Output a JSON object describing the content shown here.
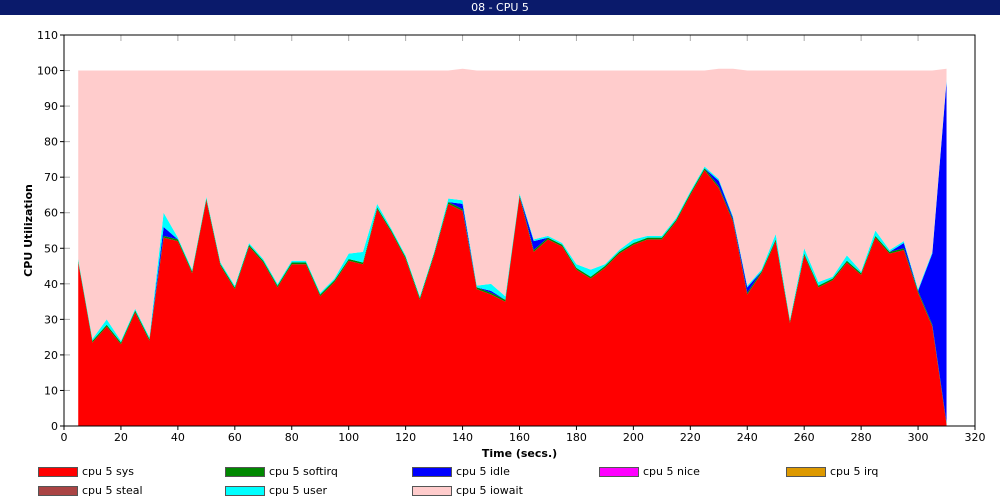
{
  "window": {
    "title": "08 - CPU 5"
  },
  "chart_data": {
    "type": "area",
    "stacked": true,
    "title": "",
    "xlabel": "Time (secs.)",
    "ylabel": "CPU Utilization",
    "xlim": [
      0,
      320
    ],
    "ylim": [
      0,
      110
    ],
    "x_ticks": [
      0,
      20,
      40,
      60,
      80,
      100,
      120,
      140,
      160,
      180,
      200,
      220,
      240,
      260,
      280,
      300,
      320
    ],
    "y_ticks": [
      0,
      10,
      20,
      30,
      40,
      50,
      60,
      70,
      80,
      90,
      100,
      110
    ],
    "grid": true,
    "legend_position": "bottom",
    "x": [
      5,
      10,
      15,
      20,
      25,
      30,
      35,
      40,
      45,
      50,
      55,
      60,
      65,
      70,
      75,
      80,
      85,
      90,
      95,
      100,
      105,
      110,
      115,
      120,
      125,
      130,
      135,
      140,
      145,
      150,
      155,
      160,
      165,
      170,
      175,
      180,
      185,
      190,
      195,
      200,
      205,
      210,
      215,
      220,
      225,
      230,
      235,
      240,
      245,
      250,
      255,
      260,
      265,
      270,
      275,
      280,
      285,
      290,
      295,
      300,
      305,
      310
    ],
    "series": [
      {
        "name": "cpu 5 sys",
        "color": "#ff0000",
        "values": [
          46,
          23.5,
          28,
          23,
          32,
          24,
          53,
          52,
          43,
          63.5,
          45,
          38.5,
          50.5,
          46,
          39,
          45.5,
          45.5,
          36.5,
          40.5,
          46.5,
          45.5,
          61,
          54.5,
          47,
          35.5,
          48,
          62.5,
          60.5,
          38.5,
          37,
          35,
          64.5,
          49,
          52.5,
          50.5,
          44,
          41.5,
          44.5,
          48.5,
          51,
          52.5,
          52.5,
          57.5,
          65,
          72,
          67,
          57.5,
          37,
          43,
          52,
          29,
          48,
          39,
          41,
          46,
          42.5,
          53,
          48.5,
          49.5,
          37.5,
          28,
          0.5
        ]
      },
      {
        "name": "cpu 5 softirq",
        "color": "#008800",
        "values": [
          0.5,
          0.5,
          0.5,
          0.5,
          0.5,
          0.5,
          0.5,
          0.5,
          0.5,
          0.5,
          0.5,
          0.5,
          0.5,
          0.5,
          0.5,
          0.5,
          0.5,
          0.5,
          0.5,
          0.5,
          0.5,
          0.5,
          0.5,
          0.5,
          0.5,
          0.5,
          0.5,
          0.5,
          0.5,
          0.5,
          0.5,
          0.5,
          0.5,
          0.5,
          0.5,
          0.5,
          0.5,
          0.5,
          0.5,
          0.5,
          0.5,
          0.5,
          0.5,
          0.5,
          0.5,
          0.5,
          0.5,
          0.5,
          0.5,
          0.5,
          0.5,
          0.5,
          0.5,
          0.5,
          0.5,
          0.5,
          0.5,
          0.5,
          0.5,
          0.5,
          0.5,
          0.5
        ]
      },
      {
        "name": "cpu 5 idle",
        "color": "#0000ff",
        "values": [
          0,
          0,
          0,
          0,
          0,
          0,
          2.5,
          0,
          0,
          0,
          0,
          0,
          0,
          0,
          0,
          0,
          0,
          0,
          0,
          0,
          0,
          0,
          0,
          0,
          0,
          0,
          0,
          1.5,
          0,
          0.5,
          0,
          0,
          2.5,
          0,
          0,
          0,
          0,
          0,
          0,
          0,
          0,
          0,
          0,
          0,
          0,
          1.5,
          0.5,
          1.5,
          0,
          0,
          0,
          0,
          0,
          0,
          0,
          0,
          0,
          0,
          1.5,
          0,
          20,
          96
        ]
      },
      {
        "name": "cpu 5 nice",
        "color": "#ff00ff",
        "values": [
          0,
          0,
          0,
          0,
          0,
          0,
          0,
          0,
          0,
          0,
          0,
          0,
          0,
          0,
          0,
          0,
          0,
          0,
          0,
          0,
          0,
          0,
          0,
          0,
          0,
          0,
          0,
          0,
          0,
          0,
          0,
          0,
          0,
          0,
          0,
          0,
          0,
          0,
          0,
          0,
          0,
          0,
          0,
          0,
          0,
          0,
          0,
          0,
          0,
          0,
          0,
          0,
          0,
          0,
          0,
          0,
          0,
          0,
          0,
          0,
          0,
          0
        ]
      },
      {
        "name": "cpu 5 irq",
        "color": "#dd9900",
        "values": [
          0,
          0,
          0,
          0,
          0,
          0,
          0,
          0,
          0,
          0,
          0,
          0,
          0,
          0,
          0,
          0,
          0,
          0,
          0,
          0,
          0,
          0,
          0,
          0,
          0,
          0,
          0,
          0,
          0,
          0,
          0,
          0,
          0,
          0,
          0,
          0,
          0,
          0,
          0,
          0,
          0,
          0,
          0,
          0,
          0,
          0,
          0,
          0,
          0,
          0,
          0,
          0,
          0,
          0,
          0,
          0,
          0,
          0,
          0,
          0,
          0,
          0
        ]
      },
      {
        "name": "cpu 5 steal",
        "color": "#aa4444",
        "values": [
          0,
          0,
          0,
          0,
          0,
          0,
          0,
          0,
          0,
          0,
          0,
          0,
          0,
          0,
          0,
          0,
          0,
          0,
          0,
          0,
          0,
          0,
          0,
          0,
          0,
          0,
          0,
          0,
          0,
          0,
          0,
          0,
          0,
          0,
          0,
          0,
          0,
          0,
          0,
          0,
          0,
          0,
          0,
          0,
          0,
          0,
          0,
          0,
          0,
          0,
          0,
          0,
          0,
          0,
          0,
          0,
          0,
          0,
          0,
          0,
          0,
          0
        ]
      },
      {
        "name": "cpu 5 user",
        "color": "#00ffff",
        "values": [
          0.5,
          0.5,
          1.5,
          0.5,
          0.5,
          0.5,
          4,
          0.5,
          0.5,
          0.5,
          0.5,
          0.5,
          0.5,
          0.5,
          0.5,
          0.5,
          0.5,
          0.5,
          0.5,
          1.5,
          3,
          1,
          0.5,
          0.5,
          0.5,
          0.5,
          1,
          1,
          0.5,
          2,
          1,
          0.5,
          0.5,
          0.5,
          0.5,
          1,
          2,
          0.5,
          0.5,
          1,
          0.5,
          0.5,
          0.5,
          0.5,
          0.5,
          0.5,
          0.5,
          0.5,
          0.5,
          1.5,
          0.5,
          1.5,
          1,
          0.5,
          1.5,
          0.5,
          1.5,
          0.5,
          0.5,
          0.5,
          0.5,
          0.5
        ]
      },
      {
        "name": "cpu 5 iowait",
        "color": "#ffcccc",
        "values": [
          53,
          75.5,
          70,
          76,
          67,
          75,
          40,
          47,
          56,
          35.5,
          54,
          60.5,
          48.5,
          53,
          60,
          53.5,
          53.5,
          62.5,
          58.5,
          51.5,
          51,
          37.5,
          44.5,
          52,
          63.5,
          51,
          36,
          37,
          60.5,
          60,
          63.5,
          34.5,
          47.5,
          46.5,
          48.5,
          54.5,
          56,
          54.5,
          50.5,
          47.5,
          46.5,
          46.5,
          41.5,
          34,
          27,
          31,
          41.5,
          60.5,
          56,
          46,
          70,
          50,
          59.5,
          58,
          52,
          56.5,
          45,
          50.5,
          48,
          61.5,
          51,
          3
        ]
      }
    ]
  }
}
